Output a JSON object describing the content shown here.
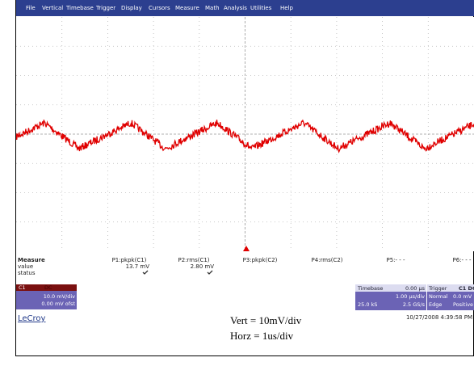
{
  "menu": [
    "File",
    "Vertical",
    "Timebase",
    "Trigger",
    "Display",
    "Cursors",
    "Measure",
    "Math",
    "Analysis",
    "Utilities",
    "Help"
  ],
  "screen": {
    "trace_label": "C1"
  },
  "measure": {
    "title": "Measure",
    "row_labels": [
      "value",
      "status"
    ],
    "columns": [
      {
        "name": "P1:pkpk(C1)",
        "value": "13.7 mV"
      },
      {
        "name": "P2:rms(C1)",
        "value": "2.80 mV"
      },
      {
        "name": "P3:pkpk(C2)"
      },
      {
        "name": "P4:rms(C2)"
      },
      {
        "name": "P5:- - -"
      },
      {
        "name": "P6:- - -"
      }
    ]
  },
  "channel": {
    "name": "C1",
    "coupling": "DC",
    "scale": "10.0 mV/div",
    "offset": "0.00 mV ofst"
  },
  "timebase": {
    "title": "Timebase",
    "delay": "0.00 µs",
    "scale": "1.00 µs/div",
    "samples": "25.0 kS",
    "rate": "2.5 GS/s"
  },
  "trigger": {
    "title": "Trigger",
    "source": "C1 DC",
    "mode": "Normal",
    "level": "0.0 mV",
    "type": "Edge",
    "slope": "Positive"
  },
  "brand": "LeCroy",
  "timestamp": "10/27/2008 4:39:58 PM",
  "annotation": [
    "Vert = 10mV/div",
    "Horz = 1us/div"
  ]
}
